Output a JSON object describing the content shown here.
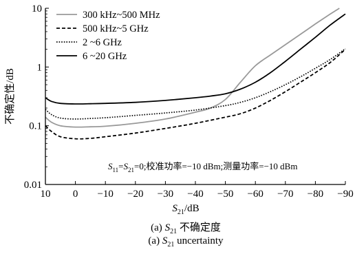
{
  "chart_data": {
    "type": "line",
    "x_scale": "linear",
    "y_scale": "log",
    "xlim": [
      10,
      -90
    ],
    "ylim": [
      0.01,
      10
    ],
    "x_ticks": [
      10,
      0,
      -10,
      -20,
      -30,
      -40,
      -50,
      -60,
      -70,
      -80,
      -90
    ],
    "x_tick_labels": [
      "10",
      "0",
      "−10",
      "−20",
      "−30",
      "−40",
      "−50",
      "−60",
      "−70",
      "−80",
      "−90"
    ],
    "y_ticks": [
      0.01,
      0.1,
      1,
      10
    ],
    "y_tick_labels": [
      "0.01",
      "0.1",
      "1",
      "10"
    ],
    "xlabel": {
      "base": "S",
      "sub": "21",
      "rest": "/dB"
    },
    "ylabel": "不确定性/dB",
    "grid": false,
    "legend_position": "top-left",
    "annotation": {
      "parts": [
        {
          "t": "S",
          "style": "italic"
        },
        {
          "t": "11",
          "style": "sub"
        },
        {
          "t": "=",
          "style": "normal"
        },
        {
          "t": "S",
          "style": "italic"
        },
        {
          "t": "21",
          "style": "sub"
        },
        {
          "t": "=0;校准功率=−10 dBm;测量功率=−10 dBm",
          "style": "normal"
        }
      ]
    },
    "series": [
      {
        "name": "300 kHz~500 MHz",
        "color": "#999999",
        "dash": "solid",
        "x": [
          10,
          8,
          5,
          0,
          -5,
          -10,
          -20,
          -30,
          -40,
          -45,
          -50,
          -55,
          -60,
          -65,
          -70,
          -75,
          -80,
          -85,
          -88
        ],
        "y": [
          0.14,
          0.115,
          0.1,
          0.095,
          0.096,
          0.098,
          0.11,
          0.13,
          0.17,
          0.2,
          0.28,
          0.55,
          1.05,
          1.6,
          2.4,
          3.6,
          5.4,
          8.0,
          10.0
        ]
      },
      {
        "name": "500 kHz~5 GHz",
        "color": "#000000",
        "dash": "dashed",
        "x": [
          10,
          8,
          5,
          0,
          -5,
          -10,
          -20,
          -30,
          -40,
          -50,
          -55,
          -60,
          -65,
          -70,
          -75,
          -80,
          -85,
          -90
        ],
        "y": [
          0.1,
          0.08,
          0.065,
          0.06,
          0.061,
          0.065,
          0.075,
          0.09,
          0.11,
          0.14,
          0.16,
          0.2,
          0.27,
          0.38,
          0.55,
          0.8,
          1.2,
          2.0
        ]
      },
      {
        "name": "2 ~6 GHz",
        "color": "#000000",
        "dash": "dotted",
        "x": [
          10,
          8,
          5,
          0,
          -5,
          -10,
          -20,
          -30,
          -40,
          -50,
          -55,
          -60,
          -65,
          -70,
          -75,
          -80,
          -85,
          -90
        ],
        "y": [
          0.19,
          0.155,
          0.135,
          0.13,
          0.133,
          0.137,
          0.15,
          0.165,
          0.185,
          0.22,
          0.25,
          0.3,
          0.38,
          0.5,
          0.68,
          0.95,
          1.35,
          2.05
        ]
      },
      {
        "name": "6 ~20 GHz",
        "color": "#000000",
        "dash": "solid",
        "x": [
          10,
          8,
          5,
          0,
          -5,
          -10,
          -20,
          -30,
          -40,
          -45,
          -50,
          -55,
          -60,
          -65,
          -70,
          -75,
          -80,
          -85,
          -90
        ],
        "y": [
          0.3,
          0.26,
          0.24,
          0.235,
          0.237,
          0.24,
          0.25,
          0.27,
          0.3,
          0.32,
          0.35,
          0.42,
          0.55,
          0.8,
          1.25,
          2.0,
          3.2,
          5.2,
          8.0
        ]
      }
    ]
  },
  "caption": {
    "line1": {
      "prefix": "(a) ",
      "var": "S",
      "sub": "21",
      "rest": " 不确定度"
    },
    "line2": {
      "prefix": "(a) ",
      "var": "S",
      "sub": "21",
      "rest": " uncertainty"
    }
  }
}
